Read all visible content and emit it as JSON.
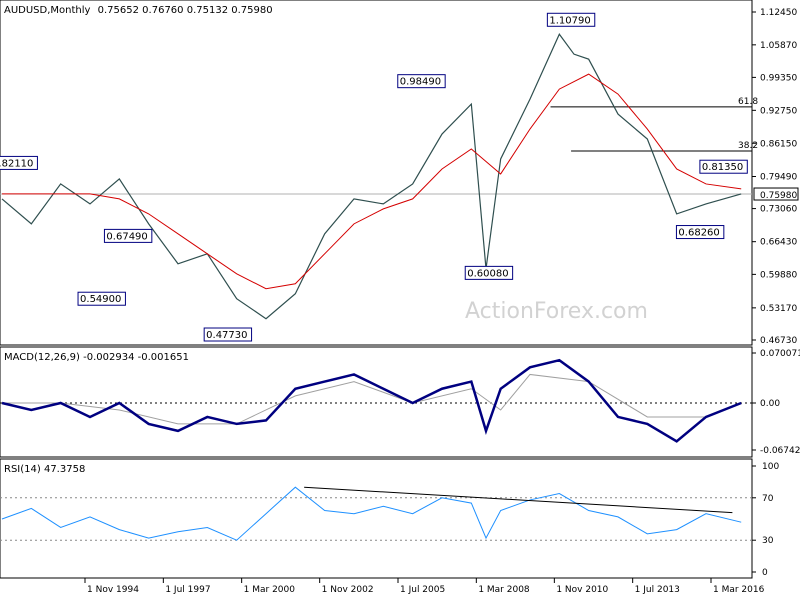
{
  "chart_data": {
    "type": "line",
    "price_panel": {
      "symbol_label": "AUDUSD,Monthly",
      "ohlc_label": "0.75652 0.76760 0.75132 0.75980",
      "y_ticks": [
        "1.12450",
        "1.05870",
        "0.99350",
        "0.92750",
        "0.86150",
        "0.79490",
        "0.73060",
        "0.66430",
        "0.59880",
        "0.53170",
        "0.46730"
      ],
      "current_price": "0.75980",
      "x_ticks": [
        "1 Nov 1994",
        "1 Jul 1997",
        "1 Mar 2000",
        "1 Nov 2002",
        "1 Jul 2005",
        "1 Mar 2008",
        "1 Nov 2010",
        "1 Jul 2013",
        "1 Mar 2016"
      ],
      "price_series": {
        "x": [
          1992,
          1993,
          1994,
          1995,
          1996,
          1997,
          1998,
          1999,
          2000,
          2001,
          2002,
          2003,
          2004,
          2005,
          2006,
          2007,
          2008,
          2008.5,
          2009,
          2010,
          2011,
          2011.5,
          2012,
          2013,
          2014,
          2015,
          2016,
          2017.2
        ],
        "y": [
          0.75,
          0.7,
          0.78,
          0.74,
          0.79,
          0.7,
          0.62,
          0.64,
          0.55,
          0.51,
          0.56,
          0.68,
          0.75,
          0.74,
          0.78,
          0.88,
          0.94,
          0.61,
          0.83,
          0.95,
          1.08,
          1.04,
          1.03,
          0.92,
          0.87,
          0.72,
          0.74,
          0.76
        ]
      },
      "ma_series": {
        "x": [
          1992,
          1993,
          1994,
          1995,
          1996,
          1997,
          1998,
          1999,
          2000,
          2001,
          2002,
          2003,
          2004,
          2005,
          2006,
          2007,
          2008,
          2009,
          2010,
          2011,
          2012,
          2013,
          2014,
          2015,
          2016,
          2017.2
        ],
        "y": [
          0.76,
          0.76,
          0.76,
          0.76,
          0.75,
          0.72,
          0.68,
          0.64,
          0.6,
          0.57,
          0.58,
          0.64,
          0.7,
          0.73,
          0.75,
          0.81,
          0.85,
          0.8,
          0.89,
          0.97,
          1.0,
          0.96,
          0.89,
          0.81,
          0.78,
          0.77
        ]
      },
      "fib_levels": [
        {
          "label": "61.8",
          "value": 0.9345
        },
        {
          "label": "38.2",
          "value": 0.846
        }
      ],
      "annotations": [
        {
          "label": "0.82110",
          "value": 0.8211,
          "x": 1992.4
        },
        {
          "label": "0.67490",
          "value": 0.6749,
          "x": 1996.3
        },
        {
          "label": "0.54900",
          "value": 0.549,
          "x": 1995.4
        },
        {
          "label": "0.47730",
          "value": 0.4773,
          "x": 1999.7
        },
        {
          "label": "0.98490",
          "value": 0.9849,
          "x": 2006.3
        },
        {
          "label": "0.60080",
          "value": 0.6008,
          "x": 2008.6
        },
        {
          "label": "1.10790",
          "value": 1.1079,
          "x": 2011.4
        },
        {
          "label": "0.68260",
          "value": 0.6826,
          "x": 2015.8
        },
        {
          "label": "0.81350",
          "value": 0.8135,
          "x": 2016.6
        }
      ],
      "watermark": "ActionForex.com"
    },
    "macd_panel": {
      "label": "MACD(12,26,9) -0.002934 -0.001651",
      "y_ticks": [
        "0.070071",
        "0.00",
        "-0.067423"
      ],
      "macd_series": {
        "x": [
          1992,
          1993,
          1994,
          1995,
          1996,
          1997,
          1998,
          1999,
          2000,
          2001,
          2002,
          2003,
          2004,
          2005,
          2006,
          2007,
          2008,
          2008.5,
          2009,
          2010,
          2011,
          2012,
          2013,
          2014,
          2015,
          2016,
          2017.2
        ],
        "y": [
          0.0,
          -0.01,
          0.0,
          -0.02,
          0.0,
          -0.03,
          -0.04,
          -0.02,
          -0.03,
          -0.025,
          0.02,
          0.03,
          0.04,
          0.02,
          0.0,
          0.02,
          0.03,
          -0.04,
          0.02,
          0.05,
          0.06,
          0.03,
          -0.02,
          -0.03,
          -0.055,
          -0.02,
          0.0
        ]
      },
      "signal_series": {
        "x": [
          1992,
          1994,
          1996,
          1998,
          2000,
          2002,
          2004,
          2006,
          2008,
          2009,
          2010,
          2012,
          2014,
          2016,
          2017.2
        ],
        "y": [
          0.0,
          0.0,
          -0.01,
          -0.03,
          -0.03,
          0.01,
          0.03,
          0.0,
          0.02,
          -0.01,
          0.04,
          0.03,
          -0.02,
          -0.02,
          0.0
        ]
      }
    },
    "rsi_panel": {
      "label": "RSI(14) 47.3758",
      "y_ticks": [
        "100",
        "70",
        "30",
        "0"
      ],
      "rsi_series": {
        "x": [
          1992,
          1993,
          1994,
          1995,
          1996,
          1997,
          1998,
          1999,
          2000,
          2001,
          2002,
          2003,
          2004,
          2005,
          2006,
          2007,
          2008,
          2008.5,
          2009,
          2010,
          2011,
          2012,
          2013,
          2014,
          2015,
          2016,
          2017.2
        ],
        "y": [
          50,
          60,
          42,
          52,
          40,
          32,
          38,
          42,
          30,
          55,
          80,
          58,
          55,
          62,
          55,
          70,
          65,
          32,
          58,
          68,
          74,
          58,
          52,
          36,
          40,
          55,
          47
        ]
      },
      "trendline": {
        "x": [
          2002.3,
          2016.9
        ],
        "y": [
          80,
          56
        ]
      }
    }
  }
}
